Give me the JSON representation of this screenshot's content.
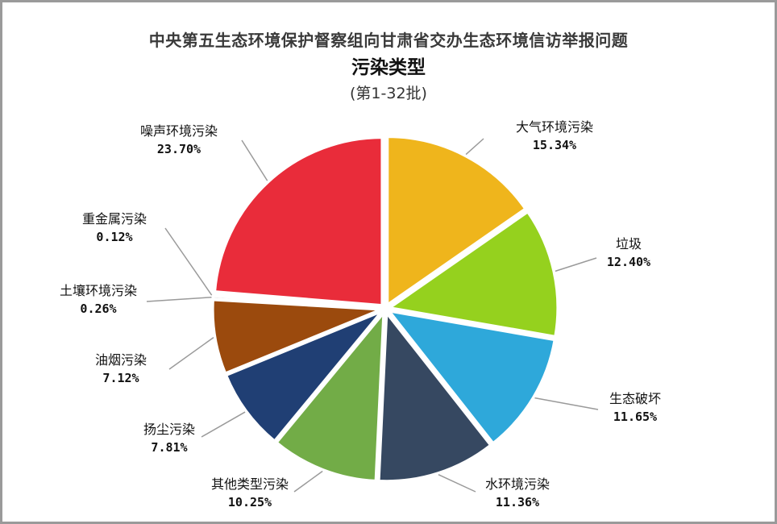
{
  "chart_data": {
    "type": "pie",
    "title": "中央第五生态环境保护督察组向甘肃省交办生态环境信访举报问题",
    "subtitle": "污染类型",
    "note": "(第1-32批)",
    "slices": [
      {
        "label": "大气环境污染",
        "pct_label": "15.34%",
        "value": 15.34,
        "color": "#EFB51C"
      },
      {
        "label": "垃圾",
        "pct_label": "12.40%",
        "value": 12.4,
        "color": "#95D11E"
      },
      {
        "label": "生态破坏",
        "pct_label": "11.65%",
        "value": 11.65,
        "color": "#2EA8DA"
      },
      {
        "label": "水环境污染",
        "pct_label": "11.36%",
        "value": 11.36,
        "color": "#364861"
      },
      {
        "label": "其他类型污染",
        "pct_label": "10.25%",
        "value": 10.25,
        "color": "#72AC47"
      },
      {
        "label": "扬尘污染",
        "pct_label": "7.81%",
        "value": 7.81,
        "color": "#203F74"
      },
      {
        "label": "油烟污染",
        "pct_label": "7.12%",
        "value": 7.12,
        "color": "#9B4A0D"
      },
      {
        "label": "土壤环境污染",
        "pct_label": "0.26%",
        "value": 0.26,
        "color": "#C9C9C9"
      },
      {
        "label": "重金属污染",
        "pct_label": "0.12%",
        "value": 0.12,
        "color": "#E8A49B"
      },
      {
        "label": "噪声环境污染",
        "pct_label": "23.70%",
        "value": 23.7,
        "color": "#E92C3A"
      }
    ]
  }
}
